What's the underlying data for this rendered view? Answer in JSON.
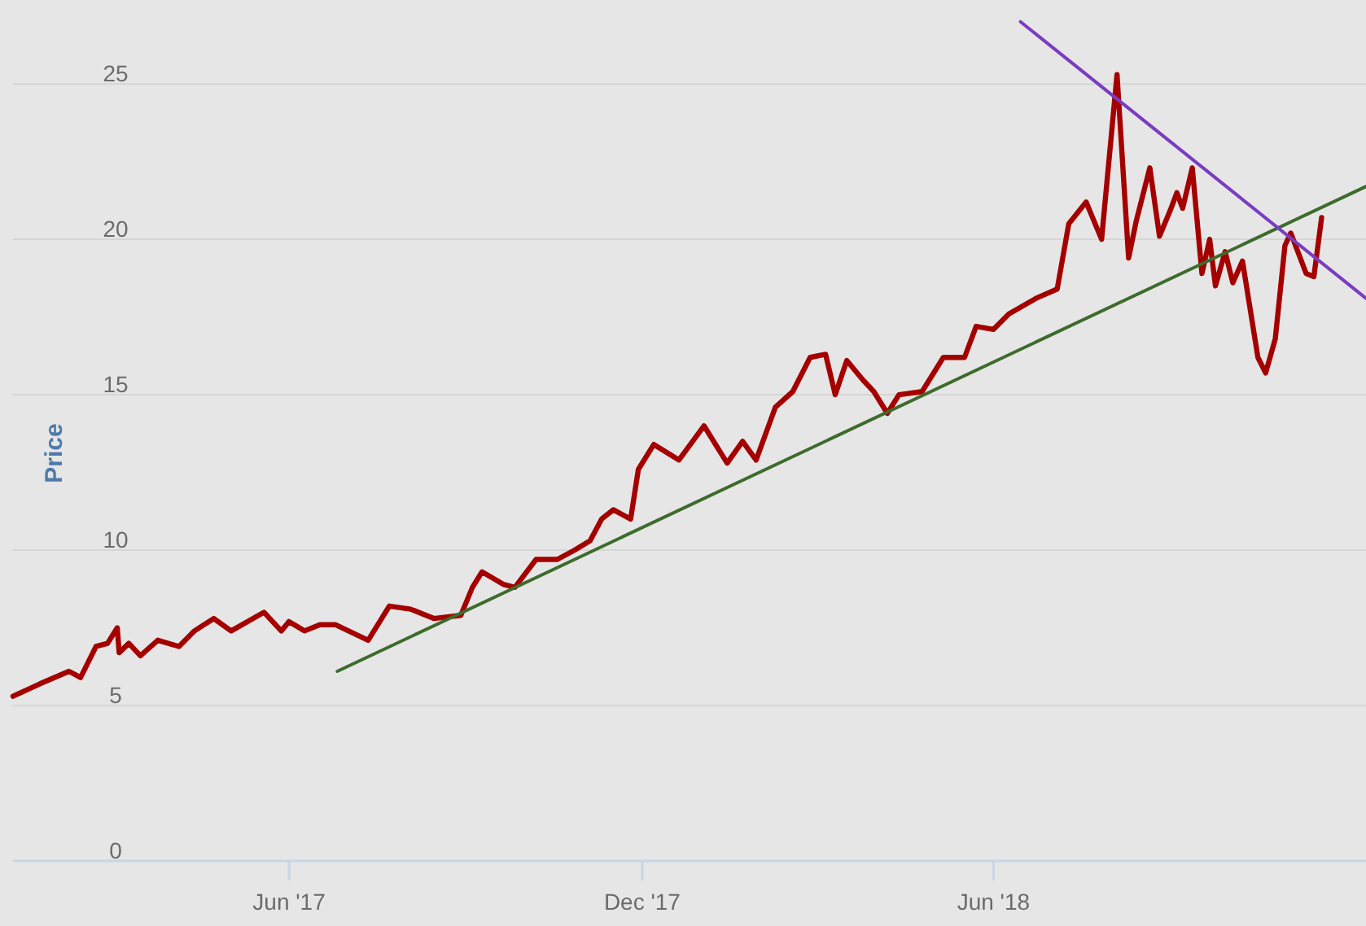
{
  "chart_data": {
    "type": "line",
    "ylabel": "Price",
    "xlim": [
      "2017-01-09",
      "2018-12-11"
    ],
    "ylim": [
      0,
      27.7
    ],
    "xticks": [
      {
        "value": "2017-06-01",
        "label": "Jun '17"
      },
      {
        "value": "2017-12-01",
        "label": "Dec '17"
      },
      {
        "value": "2018-06-01",
        "label": "Jun '18"
      }
    ],
    "yticks": [
      0,
      5,
      10,
      15,
      20,
      25
    ],
    "grid": "y",
    "line_style": "solid",
    "marker": "none",
    "series": [
      {
        "color": "#a50000",
        "x": [
          "2017-01-09",
          "2017-01-23",
          "2017-02-07",
          "2017-02-13",
          "2017-02-21",
          "2017-02-27",
          "2017-03-04",
          "2017-03-05",
          "2017-03-10",
          "2017-03-16",
          "2017-03-25",
          "2017-04-05",
          "2017-04-13",
          "2017-04-23",
          "2017-05-02",
          "2017-05-19",
          "2017-05-28",
          "2017-06-01",
          "2017-06-09",
          "2017-06-17",
          "2017-06-25",
          "2017-07-12",
          "2017-07-23",
          "2017-08-03",
          "2017-08-15",
          "2017-08-29",
          "2017-09-04",
          "2017-09-09",
          "2017-09-20",
          "2017-09-26",
          "2017-10-07",
          "2017-10-18",
          "2017-10-27",
          "2017-11-04",
          "2017-11-10",
          "2017-11-16",
          "2017-11-25",
          "2017-11-29",
          "2017-12-07",
          "2017-12-20",
          "2018-01-02",
          "2018-01-14",
          "2018-01-22",
          "2018-01-29",
          "2018-02-08",
          "2018-02-17",
          "2018-02-26",
          "2018-03-06",
          "2018-03-11",
          "2018-03-17",
          "2018-03-25",
          "2018-03-31",
          "2018-04-07",
          "2018-04-13",
          "2018-04-25",
          "2018-05-06",
          "2018-05-17",
          "2018-05-23",
          "2018-06-01",
          "2018-06-09",
          "2018-06-23",
          "2018-07-04",
          "2018-07-10",
          "2018-07-19",
          "2018-07-27",
          "2018-08-04",
          "2018-08-10",
          "2018-08-14",
          "2018-08-21",
          "2018-08-26",
          "2018-09-01",
          "2018-09-04",
          "2018-09-07",
          "2018-09-12",
          "2018-09-17",
          "2018-09-21",
          "2018-09-24",
          "2018-09-29",
          "2018-10-03",
          "2018-10-08",
          "2018-10-16",
          "2018-10-20",
          "2018-10-25",
          "2018-10-30",
          "2018-11-02",
          "2018-11-10",
          "2018-11-14",
          "2018-11-18"
        ],
        "values": [
          5.3,
          5.7,
          6.1,
          5.9,
          6.9,
          7.0,
          7.5,
          6.7,
          7.0,
          6.6,
          7.1,
          6.9,
          7.4,
          7.8,
          7.4,
          8.0,
          7.4,
          7.7,
          7.4,
          7.6,
          7.6,
          7.1,
          8.2,
          8.1,
          7.8,
          7.9,
          8.8,
          9.3,
          8.9,
          8.8,
          9.7,
          9.7,
          10.0,
          10.3,
          11.0,
          11.3,
          11.0,
          12.6,
          13.4,
          12.9,
          14.0,
          12.8,
          13.5,
          12.9,
          14.6,
          15.1,
          16.2,
          16.3,
          15.0,
          16.1,
          15.5,
          15.1,
          14.4,
          15.0,
          15.1,
          16.2,
          16.2,
          17.2,
          17.1,
          17.6,
          18.1,
          18.4,
          20.5,
          21.2,
          20.0,
          25.3,
          19.4,
          20.6,
          22.3,
          20.1,
          21.0,
          21.5,
          21.0,
          22.3,
          18.9,
          20.0,
          18.5,
          19.6,
          18.6,
          19.3,
          16.2,
          15.7,
          16.8,
          19.8,
          20.2,
          18.9,
          18.8,
          20.7
        ]
      },
      {
        "type": "line",
        "color": "#3d6b2c",
        "x": [
          "2017-06-26",
          "2018-12-11"
        ],
        "values": [
          6.1,
          21.7
        ]
      },
      {
        "type": "line",
        "color": "#7a3cc0",
        "x": [
          "2018-06-15",
          "2018-12-11"
        ],
        "values": [
          27.0,
          18.1
        ]
      }
    ]
  }
}
